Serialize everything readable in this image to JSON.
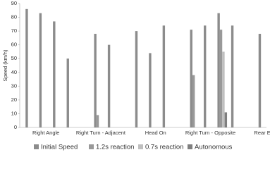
{
  "chart_data": {
    "type": "bar",
    "ylabel": "Speed (km/h)",
    "categories": [
      null,
      "Right Angle",
      null,
      null,
      null,
      "Right Turn - Adjacent",
      null,
      null,
      null,
      "Head On",
      null,
      null,
      null,
      "Right Turn - Opposite",
      null,
      null,
      null,
      "Rear End"
    ],
    "series": [
      {
        "name": "Initial Speed",
        "color": "#8c8c8c",
        "values": [
          86,
          83,
          77,
          50,
          null,
          68,
          60,
          null,
          70,
          54,
          74,
          null,
          71,
          74,
          83,
          74,
          null,
          68
        ]
      },
      {
        "name": "1.2s reaction",
        "color": "#999999",
        "values": [
          null,
          null,
          null,
          null,
          null,
          9,
          null,
          null,
          null,
          null,
          null,
          null,
          38,
          null,
          71,
          null,
          null,
          null
        ]
      },
      {
        "name": "0.7s reaction",
        "color": "#bfbfbf",
        "values": [
          null,
          null,
          null,
          null,
          null,
          null,
          null,
          null,
          null,
          null,
          null,
          null,
          null,
          null,
          55,
          null,
          null,
          null
        ]
      },
      {
        "name": "Autonomous",
        "color": "#7f7f7f",
        "values": [
          null,
          null,
          null,
          null,
          null,
          null,
          null,
          null,
          null,
          null,
          null,
          null,
          null,
          null,
          11,
          null,
          null,
          null
        ]
      }
    ],
    "ylim": [
      0,
      90
    ],
    "yticks": [
      0,
      10,
      20,
      30,
      40,
      50,
      60,
      70,
      80,
      90
    ]
  }
}
